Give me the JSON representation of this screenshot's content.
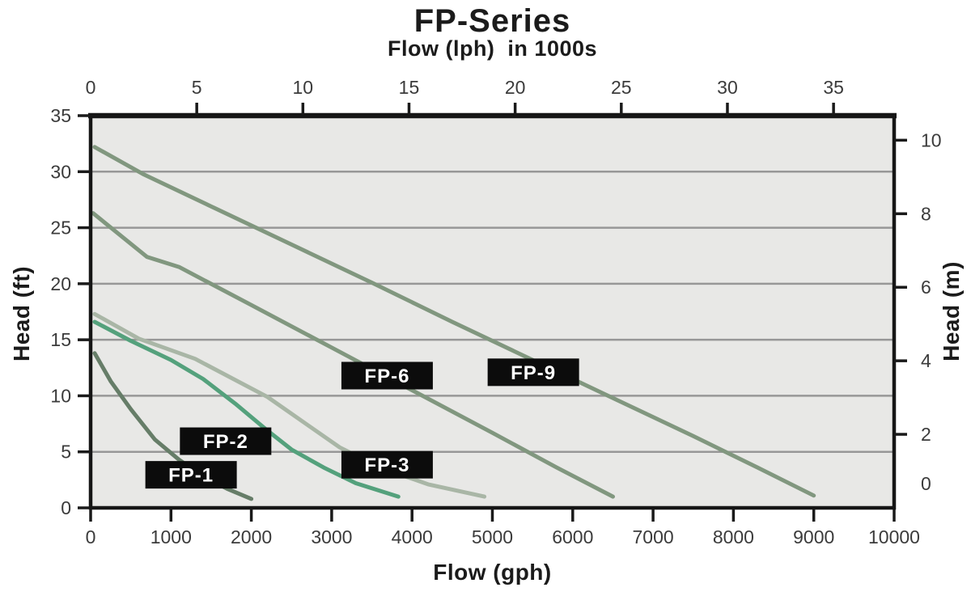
{
  "colors": {
    "page_bg": "#ffffff",
    "plot_bg": "#e8e8e6",
    "gridline": "#979797",
    "border": "#161616",
    "tick": "#1a1a1a",
    "tick_label": "#3b3b3b",
    "label_box_bg": "#0c0c0c",
    "label_box_text": "#ffffff"
  },
  "chart_data": {
    "type": "line",
    "title": "FP-Series",
    "subtitle": "Flow (lph)  in 1000s",
    "grid": "horizontal-only",
    "x_bottom": {
      "label": "Flow (gph)",
      "min": 0,
      "max": 10000,
      "ticks": [
        0,
        1000,
        2000,
        3000,
        4000,
        5000,
        6000,
        7000,
        8000,
        9000,
        10000
      ]
    },
    "x_top": {
      "label": "Flow (lph) in 1000s",
      "units_to_gph": 264.172,
      "ticks": [
        0,
        5,
        10,
        15,
        20,
        25,
        30,
        35
      ]
    },
    "y_left": {
      "label": "Head (ft)",
      "min": 0,
      "max": 35,
      "ticks": [
        0,
        5,
        10,
        15,
        20,
        25,
        30,
        35
      ],
      "gridlines_ft": [
        5,
        10,
        15,
        20,
        25,
        30
      ]
    },
    "y_right": {
      "label": "Head (m)",
      "ft_per_unit": 3.28084,
      "ticks": [
        0,
        2,
        4,
        6,
        8,
        10
      ]
    },
    "series": [
      {
        "name": "FP-9",
        "color": "#81977f",
        "points": [
          [
            50,
            32.2
          ],
          [
            650,
            29.8
          ],
          [
            1500,
            26.9
          ],
          [
            2500,
            23.5
          ],
          [
            3500,
            20.1
          ],
          [
            4500,
            16.6
          ],
          [
            5500,
            13.2
          ],
          [
            6500,
            9.8
          ],
          [
            7500,
            6.4
          ],
          [
            8300,
            3.6
          ],
          [
            9000,
            1.1
          ]
        ]
      },
      {
        "name": "FP-6",
        "color": "#81977f",
        "points": [
          [
            30,
            26.3
          ],
          [
            700,
            22.4
          ],
          [
            1100,
            21.5
          ],
          [
            2000,
            18.1
          ],
          [
            3000,
            14.3
          ],
          [
            4000,
            10.5
          ],
          [
            5000,
            6.7
          ],
          [
            5800,
            3.6
          ],
          [
            6500,
            1.0
          ]
        ]
      },
      {
        "name": "FP-3",
        "color": "#a9b6a6",
        "points": [
          [
            50,
            17.3
          ],
          [
            600,
            15.1
          ],
          [
            1300,
            13.3
          ],
          [
            2200,
            9.9
          ],
          [
            2700,
            7.4
          ],
          [
            3100,
            5.4
          ],
          [
            3600,
            3.6
          ],
          [
            4200,
            2.1
          ],
          [
            4900,
            1.0
          ]
        ]
      },
      {
        "name": "FP-2",
        "color": "#54a17c",
        "points": [
          [
            50,
            16.6
          ],
          [
            500,
            14.9
          ],
          [
            1000,
            13.2
          ],
          [
            1400,
            11.5
          ],
          [
            1800,
            9.3
          ],
          [
            2200,
            6.9
          ],
          [
            2500,
            5.2
          ],
          [
            2900,
            3.6
          ],
          [
            3300,
            2.2
          ],
          [
            3830,
            1.0
          ]
        ]
      },
      {
        "name": "FP-1",
        "color": "#667d68",
        "points": [
          [
            50,
            13.8
          ],
          [
            250,
            11.3
          ],
          [
            500,
            8.8
          ],
          [
            800,
            6.1
          ],
          [
            1100,
            4.3
          ],
          [
            1400,
            2.8
          ],
          [
            1700,
            1.7
          ],
          [
            2000,
            0.8
          ]
        ]
      }
    ],
    "labels": [
      {
        "text": "FP-1",
        "x_gph": 1250,
        "y_ft": 2.95
      },
      {
        "text": "FP-2",
        "x_gph": 1680,
        "y_ft": 5.95
      },
      {
        "text": "FP-3",
        "x_gph": 3690,
        "y_ft": 3.85
      },
      {
        "text": "FP-6",
        "x_gph": 3690,
        "y_ft": 11.8
      },
      {
        "text": "FP-9",
        "x_gph": 5510,
        "y_ft": 12.1
      }
    ]
  }
}
